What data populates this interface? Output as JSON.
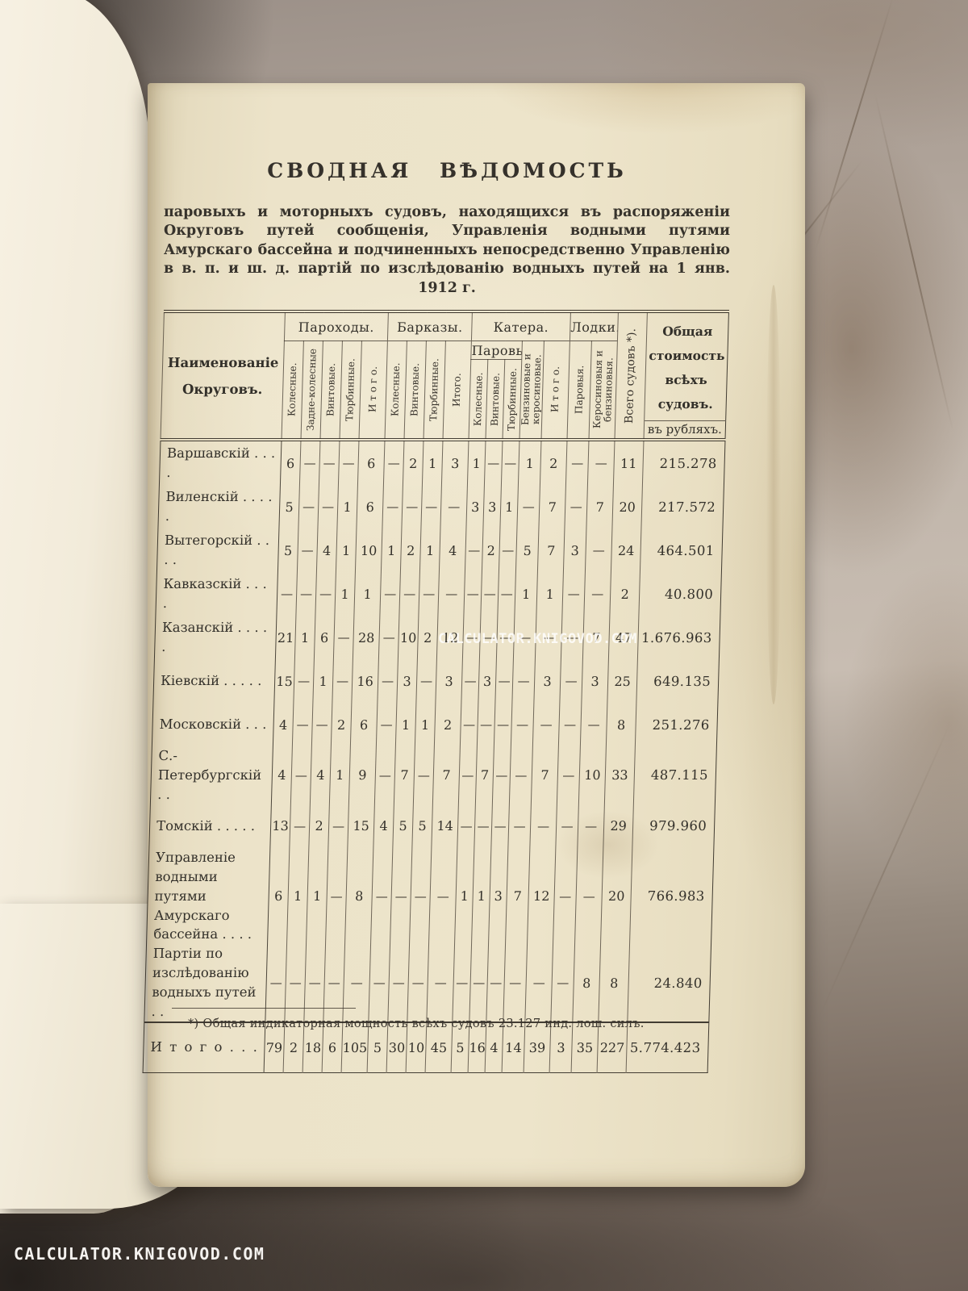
{
  "watermark": {
    "text": "CALCULATOR.KNIGOVOD.COM"
  },
  "colors": {
    "page_paper": "#ece3c9",
    "previous_page_paper": "#f4eedf",
    "ink": "#33302a",
    "marble_light": "#c4b9ae",
    "marble_dark": "#6b5e55",
    "watermark_color": "#ffffff"
  },
  "page": {
    "title": "СВОДНАЯ ВѢДОМОСТЬ",
    "intro": "паровыхъ и моторныхъ судовъ, находящихся въ распоряженіи Округовъ путей сообщенія, Управленія водными путями Амурскаго бассейна и подчиненныхъ непосредственно Управленію в в. п. и ш. д. партій по изслѣдованію водныхъ путей на 1 янв. 1912 г.",
    "footnote": "*) Общая индикаторная мощность всѣхъ судовъ 23.127 инд. лош. силъ."
  },
  "table": {
    "name_header": [
      "Наименованіе",
      "Округовъ."
    ],
    "groups": {
      "parohody": "Пароходы.",
      "barkazy": "Барказы.",
      "katera": "Катера.",
      "lodki": "Лодки."
    },
    "subgroup_steam": "Паровые.",
    "columns": {
      "p": [
        "Колесные.",
        "Задне-колесные",
        "Винтовые.",
        "Тюрбинные.",
        "И т о г о."
      ],
      "b": [
        "Колесные.",
        "Винтовые.",
        "Тюрбинные.",
        "Итого."
      ],
      "k_steam": [
        "Колесные.",
        "Винтовые.",
        "Тюрбинные."
      ],
      "k_benz": "Бензиновые и керосиновые.",
      "k_total": "И т о г о.",
      "l": [
        "Паровыя.",
        "Керосиновыя и бензиновыя."
      ]
    },
    "total_label": "Всего судовъ *).",
    "cost_label": "Общая стоимость всѣхъ судовъ.",
    "cost_sub": "въ рубляхъ.",
    "rows": [
      {
        "label": "Варшавскій . . . .",
        "values": [
          "6",
          "—",
          "—",
          "—",
          "6",
          "—",
          "2",
          "1",
          "3",
          "1",
          "—",
          "—",
          "1",
          "2",
          "—",
          "—",
          "11",
          "215.278"
        ]
      },
      {
        "label": "Виленскій . . . . .",
        "values": [
          "5",
          "—",
          "—",
          "1",
          "6",
          "—",
          "—",
          "—",
          "—",
          "3",
          "3",
          "1",
          "—",
          "7",
          "—",
          "7",
          "20",
          "217.572"
        ]
      },
      {
        "label": "Вытегорскій . . . .",
        "values": [
          "5",
          "—",
          "4",
          "1",
          "10",
          "1",
          "2",
          "1",
          "4",
          "—",
          "2",
          "—",
          "5",
          "7",
          "3",
          "—",
          "24",
          "464.501"
        ]
      },
      {
        "label": "Кавказскій . . . .",
        "values": [
          "—",
          "—",
          "—",
          "1",
          "1",
          "—",
          "—",
          "—",
          "—",
          "—",
          "—",
          "—",
          "1",
          "1",
          "—",
          "—",
          "2",
          "40.800"
        ]
      },
      {
        "label": "Казанскій . . . . .",
        "values": [
          "21",
          "1",
          "6",
          "—",
          "28",
          "—",
          "10",
          "2",
          "12",
          "—",
          "—",
          "—",
          "—",
          "—",
          "—",
          "7",
          "47",
          "1.676.963"
        ]
      },
      {
        "label": "Кіевскій . . . . .",
        "values": [
          "15",
          "—",
          "1",
          "—",
          "16",
          "—",
          "3",
          "—",
          "3",
          "—",
          "3",
          "—",
          "—",
          "3",
          "—",
          "3",
          "25",
          "649.135"
        ]
      },
      {
        "label": "Московскій . . .",
        "values": [
          "4",
          "—",
          "—",
          "2",
          "6",
          "—",
          "1",
          "1",
          "2",
          "—",
          "—",
          "—",
          "—",
          "—",
          "—",
          "—",
          "8",
          "251.276"
        ]
      },
      {
        "label": "С.-Петербургскій . .",
        "values": [
          "4",
          "—",
          "4",
          "1",
          "9",
          "—",
          "7",
          "—",
          "7",
          "—",
          "7",
          "—",
          "—",
          "7",
          "—",
          "10",
          "33",
          "487.115"
        ]
      },
      {
        "label": "Томскій . . . . .",
        "values": [
          "13",
          "—",
          "2",
          "—",
          "15",
          "4",
          "5",
          "5",
          "14",
          "—",
          "—",
          "—",
          "—",
          "—",
          "—",
          "—",
          "29",
          "979.960"
        ]
      },
      {
        "label": "Управленіе водными путями Амурскаго бассейна . . . .",
        "values": [
          "6",
          "1",
          "1",
          "—",
          "8",
          "—",
          "—",
          "—",
          "—",
          "1",
          "1",
          "3",
          "7",
          "12",
          "—",
          "—",
          "20",
          "766.983"
        ]
      },
      {
        "label": "Партіи по изслѣдованію водныхъ путей . .",
        "values": [
          "—",
          "—",
          "—",
          "—",
          "—",
          "—",
          "—",
          "—",
          "—",
          "—",
          "—",
          "—",
          "—",
          "—",
          "—",
          "8",
          "8",
          "24.840"
        ]
      }
    ],
    "total_row": {
      "label": "И т о г о . . .",
      "values": [
        "79",
        "2",
        "18",
        "6",
        "105",
        "5",
        "30",
        "10",
        "45",
        "5",
        "16",
        "4",
        "14",
        "39",
        "3",
        "35",
        "227",
        "5.774.423"
      ]
    }
  }
}
